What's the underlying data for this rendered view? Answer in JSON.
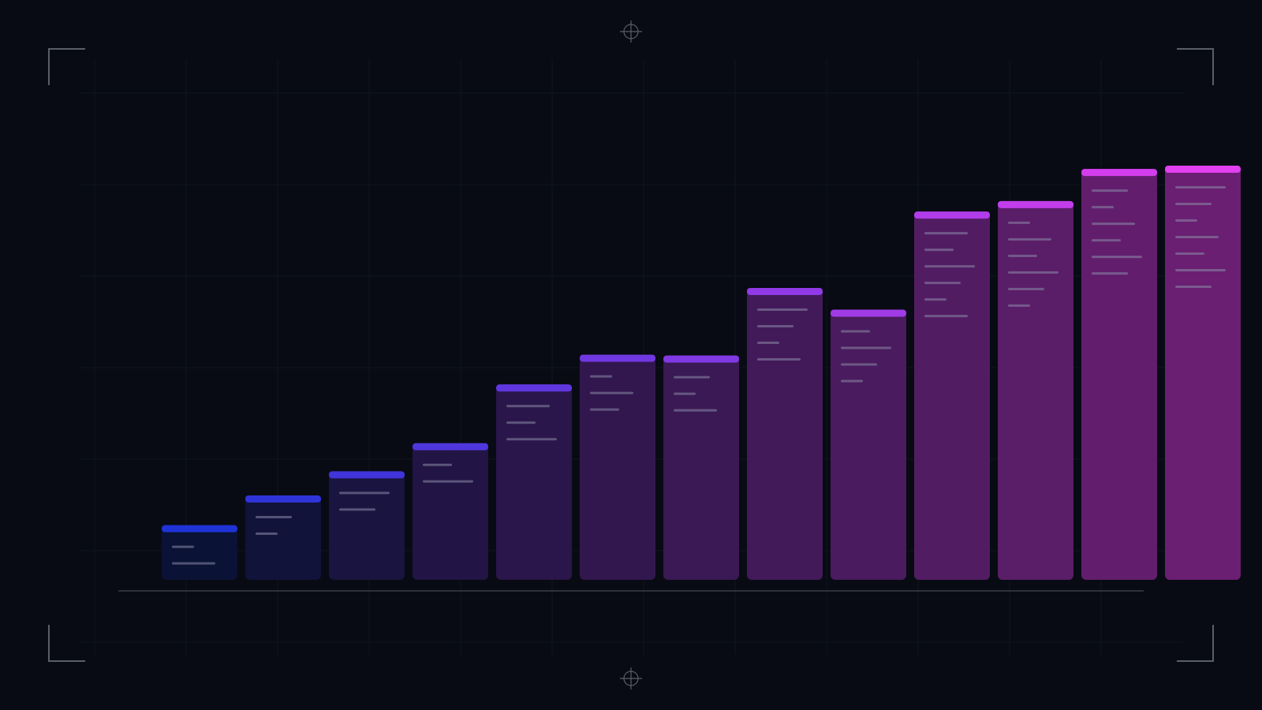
{
  "chart_data": {
    "type": "bar",
    "values": [
      68,
      105,
      135,
      170,
      243,
      280,
      279,
      363,
      336,
      458,
      471,
      511,
      515
    ],
    "color_start": "#1f33d6",
    "color_end": "#e23ff0",
    "body_start": "#0a1236",
    "body_end": "#6a1f72",
    "grid": true
  }
}
